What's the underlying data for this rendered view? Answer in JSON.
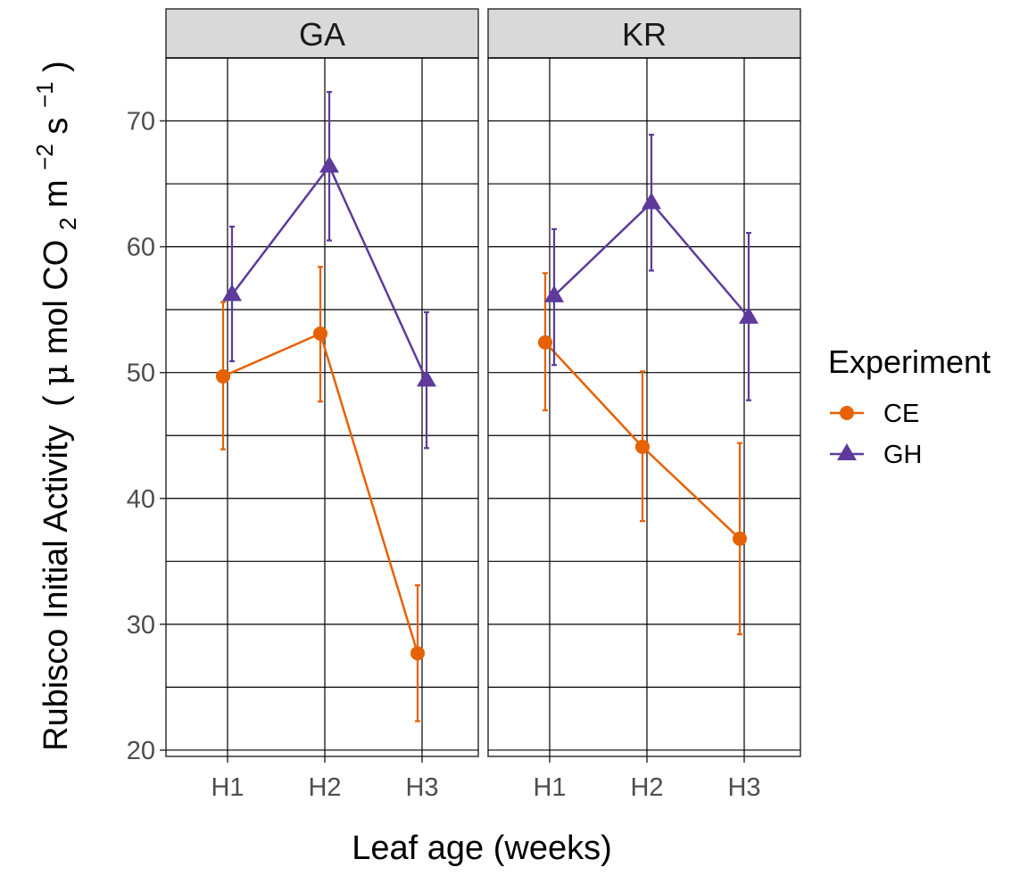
{
  "chart_data": {
    "type": "line",
    "ylabel_main": "Rubisco Initial Activity",
    "ylabel_units": {
      "open": "(",
      "mu": "μ",
      "mol": " mol CO",
      "sub2": "2",
      "m": " m",
      "exp_m": "−2",
      "s": " s",
      "exp_s": "−1",
      "close": ")"
    },
    "xlabel": "Leaf age (weeks)",
    "ylim": [
      19.5,
      75
    ],
    "yticks": [
      "20",
      "30",
      "40",
      "50",
      "60",
      "70"
    ],
    "categories": [
      "H1",
      "H2",
      "H3"
    ],
    "grid": true,
    "legend": {
      "title": "Experiment",
      "placement": "right",
      "entries": [
        {
          "name": "CE",
          "color": "#E66100",
          "marker": "circle"
        },
        {
          "name": "GH",
          "color": "#5D3A9B",
          "marker": "triangle"
        }
      ]
    },
    "panels": [
      {
        "title": "GA",
        "series": [
          {
            "name": "CE",
            "values": [
              49.7,
              53.1,
              27.7
            ],
            "lower": [
              43.9,
              47.7,
              22.3
            ],
            "upper": [
              55.6,
              58.4,
              33.1
            ]
          },
          {
            "name": "GH",
            "values": [
              56.2,
              66.4,
              49.4
            ],
            "lower": [
              50.9,
              60.5,
              44.0
            ],
            "upper": [
              61.6,
              72.3,
              54.8
            ]
          }
        ]
      },
      {
        "title": "KR",
        "series": [
          {
            "name": "CE",
            "values": [
              52.4,
              44.1,
              36.8
            ],
            "lower": [
              47.0,
              38.2,
              29.2
            ],
            "upper": [
              57.9,
              50.1,
              44.4
            ]
          },
          {
            "name": "GH",
            "values": [
              56.1,
              63.5,
              54.4
            ],
            "lower": [
              50.6,
              58.1,
              47.8
            ],
            "upper": [
              61.4,
              68.9,
              61.1
            ]
          }
        ]
      }
    ]
  }
}
